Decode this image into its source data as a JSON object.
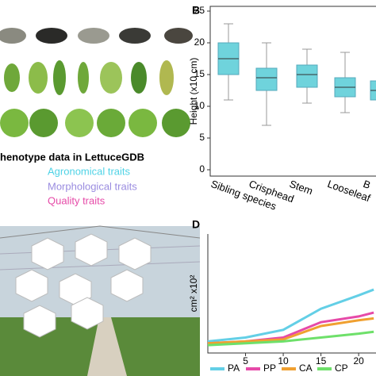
{
  "panel_a": {
    "heading": "henotype data in LettuceGDB",
    "traits": [
      "Agronomical traits",
      "Morphological traits",
      "Quality traits"
    ]
  },
  "chart_data": [
    {
      "type": "box",
      "panel": "B",
      "ylabel": "Height (x10 cm)",
      "categories": [
        "Sibling species",
        "Crisphead",
        "Stem",
        "Looseleaf",
        "B"
      ],
      "boxes": [
        {
          "min": 11,
          "q1": 15,
          "median": 17.5,
          "q3": 20,
          "max": 23
        },
        {
          "min": 7,
          "q1": 12.5,
          "median": 14.5,
          "q3": 16,
          "max": 20
        },
        {
          "min": 10.5,
          "q1": 13,
          "median": 15,
          "q3": 16.5,
          "max": 19
        },
        {
          "min": 9,
          "q1": 11.5,
          "median": 13,
          "q3": 14.5,
          "max": 18.5
        },
        {
          "min": 10,
          "q1": 11,
          "median": 12.5,
          "q3": 14,
          "max": 17
        }
      ],
      "color": "#6fd3dc",
      "ylim": [
        0,
        25
      ],
      "yticks": [
        0,
        5,
        10,
        15,
        20,
        25
      ]
    },
    {
      "type": "line",
      "panel": "D",
      "ylabel": "cm² x10²",
      "x": [
        0,
        5,
        10,
        15,
        20,
        22
      ],
      "series": [
        {
          "name": "PA",
          "color": "#63cfe6",
          "values": [
            0.4,
            0.6,
            1.0,
            2.1,
            2.8,
            3.1
          ]
        },
        {
          "name": "PP",
          "color": "#e64aa8",
          "values": [
            0.3,
            0.4,
            0.6,
            1.4,
            1.7,
            1.9
          ]
        },
        {
          "name": "CA",
          "color": "#f0a030",
          "values": [
            0.3,
            0.4,
            0.5,
            1.2,
            1.5,
            1.6
          ]
        },
        {
          "name": "CP",
          "color": "#6ee06a",
          "values": [
            0.2,
            0.3,
            0.4,
            0.6,
            0.8,
            0.9
          ]
        }
      ],
      "xlim": [
        0,
        22.3
      ],
      "xticks": [
        5,
        10,
        15,
        20
      ],
      "ylim": [
        0,
        6
      ]
    }
  ]
}
